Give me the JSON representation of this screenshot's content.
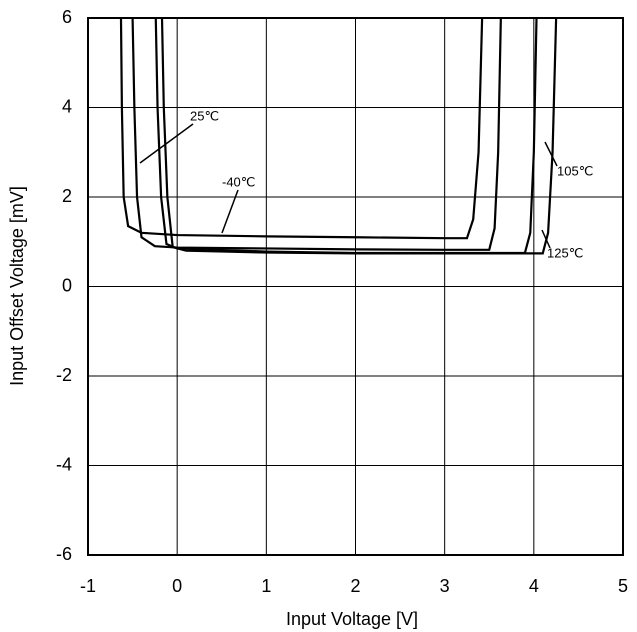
{
  "chart_data": {
    "type": "line",
    "xlabel": "Input Voltage [V]",
    "ylabel": "Input Offset Voltage [mV]",
    "xlim": [
      -1,
      5
    ],
    "ylim": [
      -6,
      6
    ],
    "xticks": [
      -1,
      0,
      1,
      2,
      3,
      4,
      5
    ],
    "yticks": [
      -6,
      -4,
      -2,
      0,
      2,
      4,
      6
    ],
    "grid": true,
    "series": [
      {
        "name": "-40℃",
        "color": "#000000",
        "x": [
          -0.63,
          -0.62,
          -0.6,
          -0.55,
          -0.4,
          0,
          1,
          2,
          3,
          3.25,
          3.32,
          3.38,
          3.42
        ],
        "values": [
          6,
          4,
          2,
          1.35,
          1.2,
          1.15,
          1.12,
          1.1,
          1.08,
          1.08,
          1.5,
          3,
          6
        ]
      },
      {
        "name": "25℃",
        "color": "#000000",
        "x": [
          -0.5,
          -0.48,
          -0.45,
          -0.4,
          -0.25,
          0,
          1,
          2,
          3,
          3.5,
          3.56,
          3.6,
          3.63
        ],
        "values": [
          6,
          4,
          2,
          1.1,
          0.9,
          0.87,
          0.85,
          0.83,
          0.82,
          0.82,
          1.3,
          3,
          6
        ]
      },
      {
        "name": "105℃",
        "color": "#000000",
        "x": [
          -0.24,
          -0.22,
          -0.18,
          -0.12,
          0,
          1,
          2,
          3,
          3.9,
          3.96,
          4.0,
          4.03
        ],
        "values": [
          6,
          4,
          2,
          0.95,
          0.85,
          0.78,
          0.75,
          0.75,
          0.75,
          1.2,
          3,
          6
        ]
      },
      {
        "name": "125℃",
        "color": "#000000",
        "x": [
          -0.17,
          -0.15,
          -0.11,
          -0.05,
          0.1,
          1,
          2,
          3,
          4.1,
          4.16,
          4.21,
          4.25
        ],
        "values": [
          6,
          4,
          2,
          0.88,
          0.8,
          0.76,
          0.74,
          0.74,
          0.74,
          1.2,
          3,
          6
        ]
      }
    ]
  }
}
